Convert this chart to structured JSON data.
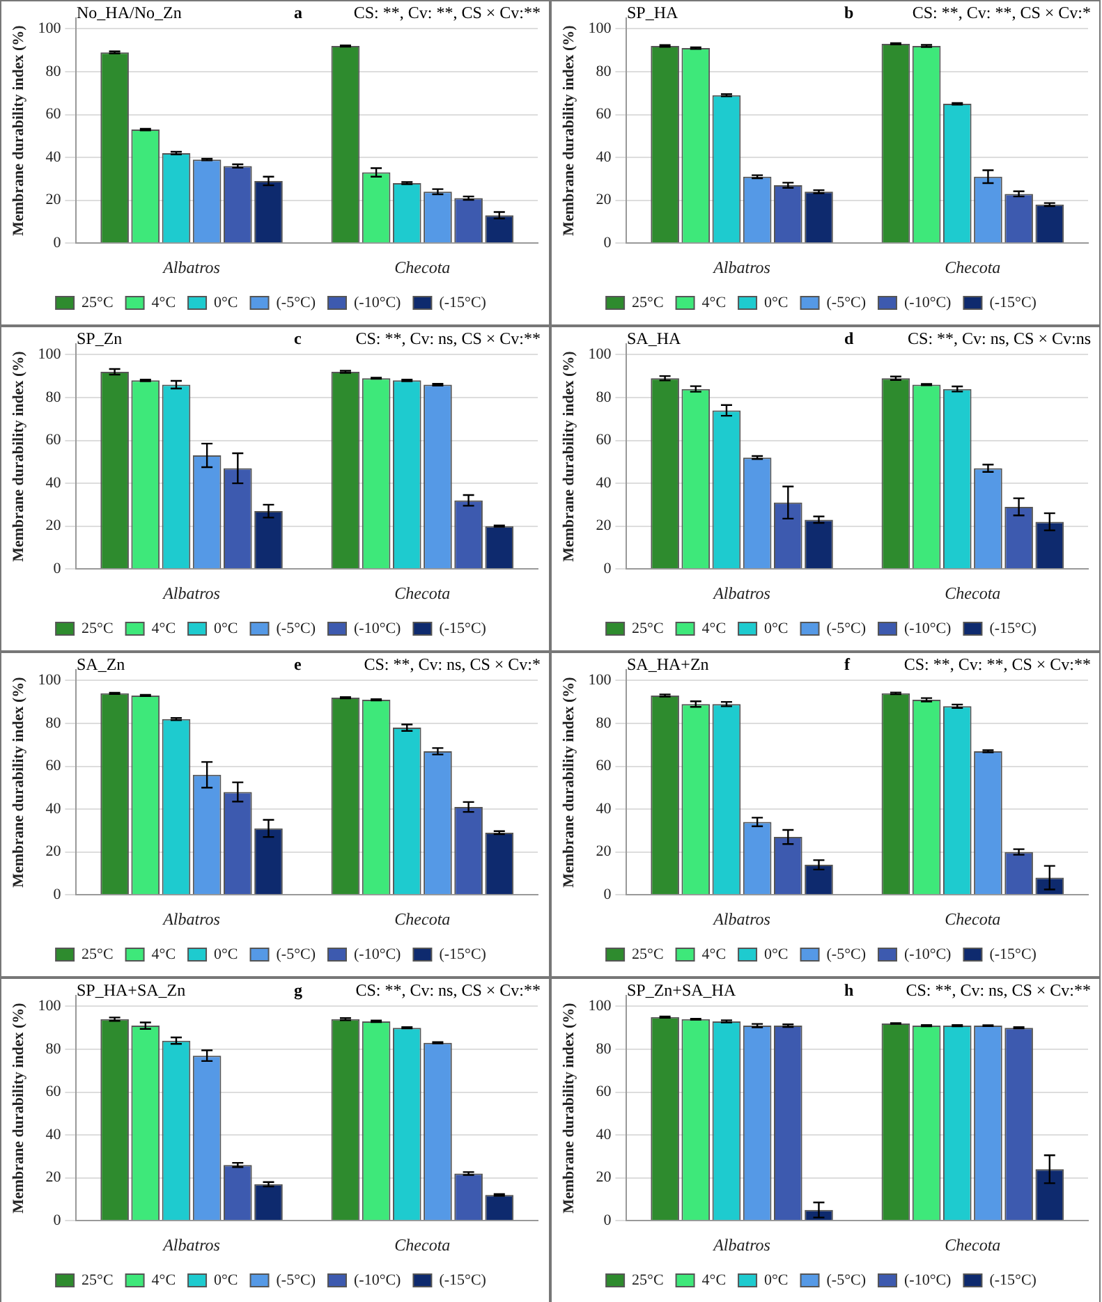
{
  "chart_data": [
    {
      "type": "bar",
      "title": "No_HA/No_Zn",
      "annotations": [
        "a",
        "CS: **, Cv: **, CS × Cv:**"
      ],
      "ylabel": "Membrane durability index (%)",
      "categories": [
        "Albatros",
        "Checota"
      ],
      "ylim": [
        0,
        105
      ],
      "yticks": [
        0,
        20,
        40,
        60,
        80,
        100
      ],
      "grid": "y",
      "legend": "bottom",
      "series": [
        {
          "name": "25°C",
          "color": "#2e8b2e",
          "values": [
            89,
            92
          ],
          "errors": [
            0.5,
            0.3
          ]
        },
        {
          "name": "4°C",
          "color": "#3ee87a",
          "values": [
            53,
            33
          ],
          "errors": [
            0.4,
            2
          ]
        },
        {
          "name": "0°C",
          "color": "#1ecbcf",
          "values": [
            42,
            28
          ],
          "errors": [
            0.6,
            0.5
          ]
        },
        {
          "name": "(-5°C)",
          "color": "#5599e6",
          "values": [
            39,
            24
          ],
          "errors": [
            0.4,
            1.2
          ]
        },
        {
          "name": "(-10°C)",
          "color": "#3d5aaf",
          "values": [
            36,
            21
          ],
          "errors": [
            0.8,
            0.8
          ]
        },
        {
          "name": "(-15°C)",
          "color": "#0e2a6e",
          "values": [
            29,
            13
          ],
          "errors": [
            2,
            1.5
          ]
        }
      ]
    },
    {
      "type": "bar",
      "title": "SP_HA",
      "annotations": [
        "b",
        "CS: **, Cv: **, CS × Cv:*"
      ],
      "ylabel": "Membrane durability index (%)",
      "categories": [
        "Albatros",
        "Checota"
      ],
      "ylim": [
        0,
        105
      ],
      "yticks": [
        0,
        20,
        40,
        60,
        80,
        100
      ],
      "grid": "y",
      "legend": "bottom",
      "series": [
        {
          "name": "25°C",
          "color": "#2e8b2e",
          "values": [
            92,
            93
          ],
          "errors": [
            0.4,
            0.3
          ]
        },
        {
          "name": "4°C",
          "color": "#3ee87a",
          "values": [
            91,
            92
          ],
          "errors": [
            0.4,
            0.5
          ]
        },
        {
          "name": "0°C",
          "color": "#1ecbcf",
          "values": [
            69,
            65
          ],
          "errors": [
            0.5,
            0.4
          ]
        },
        {
          "name": "(-5°C)",
          "color": "#5599e6",
          "values": [
            31,
            31
          ],
          "errors": [
            0.7,
            3
          ]
        },
        {
          "name": "(-10°C)",
          "color": "#3d5aaf",
          "values": [
            27,
            23
          ],
          "errors": [
            1.2,
            1.2
          ]
        },
        {
          "name": "(-15°C)",
          "color": "#0e2a6e",
          "values": [
            24,
            18
          ],
          "errors": [
            0.7,
            0.7
          ]
        }
      ]
    },
    {
      "type": "bar",
      "title": "SP_Zn",
      "annotations": [
        "c",
        "CS: **, Cv: ns, CS × Cv:**"
      ],
      "ylabel": "Membrane durability index (%)",
      "categories": [
        "Albatros",
        "Checota"
      ],
      "ylim": [
        0,
        105
      ],
      "yticks": [
        0,
        20,
        40,
        60,
        80,
        100
      ],
      "grid": "y",
      "legend": "bottom",
      "series": [
        {
          "name": "25°C",
          "color": "#2e8b2e",
          "values": [
            92,
            92
          ],
          "errors": [
            1.3,
            0.5
          ]
        },
        {
          "name": "4°C",
          "color": "#3ee87a",
          "values": [
            88,
            89
          ],
          "errors": [
            0.4,
            0.3
          ]
        },
        {
          "name": "0°C",
          "color": "#1ecbcf",
          "values": [
            86,
            88
          ],
          "errors": [
            1.8,
            0.4
          ]
        },
        {
          "name": "(-5°C)",
          "color": "#5599e6",
          "values": [
            53,
            86
          ],
          "errors": [
            5.5,
            0.4
          ]
        },
        {
          "name": "(-10°C)",
          "color": "#3d5aaf",
          "values": [
            47,
            32
          ],
          "errors": [
            7,
            2.5
          ]
        },
        {
          "name": "(-15°C)",
          "color": "#0e2a6e",
          "values": [
            27,
            20
          ],
          "errors": [
            3,
            0.3
          ]
        }
      ]
    },
    {
      "type": "bar",
      "title": "SA_HA",
      "annotations": [
        "d",
        "CS: **, Cv: ns, CS × Cv:ns"
      ],
      "ylabel": "Membrane durability index (%)",
      "categories": [
        "Albatros",
        "Checota"
      ],
      "ylim": [
        0,
        105
      ],
      "yticks": [
        0,
        20,
        40,
        60,
        80,
        100
      ],
      "grid": "y",
      "legend": "bottom",
      "series": [
        {
          "name": "25°C",
          "color": "#2e8b2e",
          "values": [
            89,
            89
          ],
          "errors": [
            1,
            0.8
          ]
        },
        {
          "name": "4°C",
          "color": "#3ee87a",
          "values": [
            84,
            86
          ],
          "errors": [
            1.3,
            0.3
          ]
        },
        {
          "name": "0°C",
          "color": "#1ecbcf",
          "values": [
            74,
            84
          ],
          "errors": [
            2.5,
            1.2
          ]
        },
        {
          "name": "(-5°C)",
          "color": "#5599e6",
          "values": [
            52,
            47
          ],
          "errors": [
            0.7,
            1.7
          ]
        },
        {
          "name": "(-10°C)",
          "color": "#3d5aaf",
          "values": [
            31,
            29
          ],
          "errors": [
            7.5,
            4
          ]
        },
        {
          "name": "(-15°C)",
          "color": "#0e2a6e",
          "values": [
            23,
            22
          ],
          "errors": [
            1.5,
            4
          ]
        }
      ]
    },
    {
      "type": "bar",
      "title": "SA_Zn",
      "annotations": [
        "e",
        "CS: **, Cv: ns, CS × Cv:*"
      ],
      "ylabel": "Membrane durability index (%)",
      "categories": [
        "Albatros",
        "Checota"
      ],
      "ylim": [
        0,
        105
      ],
      "yticks": [
        0,
        20,
        40,
        60,
        80,
        100
      ],
      "grid": "y",
      "legend": "bottom",
      "series": [
        {
          "name": "25°C",
          "color": "#2e8b2e",
          "values": [
            94,
            92
          ],
          "errors": [
            0.3,
            0.3
          ]
        },
        {
          "name": "4°C",
          "color": "#3ee87a",
          "values": [
            93,
            91
          ],
          "errors": [
            0.3,
            0.3
          ]
        },
        {
          "name": "0°C",
          "color": "#1ecbcf",
          "values": [
            82,
            78
          ],
          "errors": [
            0.5,
            1.5
          ]
        },
        {
          "name": "(-5°C)",
          "color": "#5599e6",
          "values": [
            56,
            67
          ],
          "errors": [
            6,
            1.5
          ]
        },
        {
          "name": "(-10°C)",
          "color": "#3d5aaf",
          "values": [
            48,
            41
          ],
          "errors": [
            4.5,
            2.3
          ]
        },
        {
          "name": "(-15°C)",
          "color": "#0e2a6e",
          "values": [
            31,
            29
          ],
          "errors": [
            4,
            0.7
          ]
        }
      ]
    },
    {
      "type": "bar",
      "title": "SA_HA+Zn",
      "annotations": [
        "f",
        "CS: **, Cv: **, CS × Cv:**"
      ],
      "ylabel": "Membrane durability index (%)",
      "categories": [
        "Albatros",
        "Checota"
      ],
      "ylim": [
        0,
        105
      ],
      "yticks": [
        0,
        20,
        40,
        60,
        80,
        100
      ],
      "grid": "y",
      "legend": "bottom",
      "series": [
        {
          "name": "25°C",
          "color": "#2e8b2e",
          "values": [
            93,
            94
          ],
          "errors": [
            0.5,
            0.4
          ]
        },
        {
          "name": "4°C",
          "color": "#3ee87a",
          "values": [
            89,
            91
          ],
          "errors": [
            1.3,
            0.8
          ]
        },
        {
          "name": "0°C",
          "color": "#1ecbcf",
          "values": [
            89,
            88
          ],
          "errors": [
            1,
            0.8
          ]
        },
        {
          "name": "(-5°C)",
          "color": "#5599e6",
          "values": [
            34,
            67
          ],
          "errors": [
            2,
            0.5
          ]
        },
        {
          "name": "(-10°C)",
          "color": "#3d5aaf",
          "values": [
            27,
            20
          ],
          "errors": [
            3.3,
            1.3
          ]
        },
        {
          "name": "(-15°C)",
          "color": "#0e2a6e",
          "values": [
            14,
            8
          ],
          "errors": [
            2.2,
            5.5
          ]
        }
      ]
    },
    {
      "type": "bar",
      "title": "SP_HA+SA_Zn",
      "annotations": [
        "g",
        "CS: **, Cv: ns, CS × Cv:**"
      ],
      "ylabel": "Membrane durability index (%)",
      "categories": [
        "Albatros",
        "Checota"
      ],
      "ylim": [
        0,
        105
      ],
      "yticks": [
        0,
        20,
        40,
        60,
        80,
        100
      ],
      "grid": "y",
      "legend": "bottom",
      "series": [
        {
          "name": "25°C",
          "color": "#2e8b2e",
          "values": [
            94,
            94
          ],
          "errors": [
            0.8,
            0.5
          ]
        },
        {
          "name": "4°C",
          "color": "#3ee87a",
          "values": [
            91,
            93
          ],
          "errors": [
            1.5,
            0.4
          ]
        },
        {
          "name": "0°C",
          "color": "#1ecbcf",
          "values": [
            84,
            90
          ],
          "errors": [
            1.5,
            0.3
          ]
        },
        {
          "name": "(-5°C)",
          "color": "#5599e6",
          "values": [
            77,
            83
          ],
          "errors": [
            2.5,
            0.3
          ]
        },
        {
          "name": "(-10°C)",
          "color": "#3d5aaf",
          "values": [
            26,
            22
          ],
          "errors": [
            1,
            0.7
          ]
        },
        {
          "name": "(-15°C)",
          "color": "#0e2a6e",
          "values": [
            17,
            12
          ],
          "errors": [
            1,
            0.4
          ]
        }
      ]
    },
    {
      "type": "bar",
      "title": "SP_Zn+SA_HA",
      "annotations": [
        "h",
        "CS: **, Cv: ns, CS × Cv:**"
      ],
      "ylabel": "Membrane durability index (%)",
      "categories": [
        "Albatros",
        "Checota"
      ],
      "ylim": [
        0,
        105
      ],
      "yticks": [
        0,
        20,
        40,
        60,
        80,
        100
      ],
      "grid": "y",
      "legend": "bottom",
      "series": [
        {
          "name": "25°C",
          "color": "#2e8b2e",
          "values": [
            95,
            92
          ],
          "errors": [
            0.3,
            0.2
          ]
        },
        {
          "name": "4°C",
          "color": "#3ee87a",
          "values": [
            94,
            91
          ],
          "errors": [
            0.2,
            0.3
          ]
        },
        {
          "name": "0°C",
          "color": "#1ecbcf",
          "values": [
            93,
            91
          ],
          "errors": [
            0.5,
            0.3
          ]
        },
        {
          "name": "(-5°C)",
          "color": "#5599e6",
          "values": [
            91,
            91
          ],
          "errors": [
            0.8,
            0.2
          ]
        },
        {
          "name": "(-10°C)",
          "color": "#3d5aaf",
          "values": [
            91,
            90
          ],
          "errors": [
            0.6,
            0.3
          ]
        },
        {
          "name": "(-15°C)",
          "color": "#0e2a6e",
          "values": [
            5,
            24
          ],
          "errors": [
            3.5,
            6.5
          ]
        }
      ]
    }
  ]
}
